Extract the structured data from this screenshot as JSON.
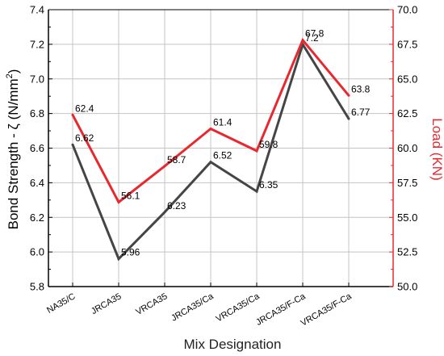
{
  "chart_data": {
    "type": "line",
    "categories": [
      "NA35/C",
      "JRCA35",
      "VRCA35",
      "JRCA35/Ca",
      "VRCA35/Ca",
      "JRCA35/F-Ca",
      "VRCA35/F-Ca"
    ],
    "xlabel": "Mix Designation",
    "ylabel_prefix": "Bond Strength - ζ (N/mm",
    "ylabel_sup": "2",
    "ylabel_suffix": ")",
    "y2label": "Load (KN)",
    "ylim": [
      5.8,
      7.4
    ],
    "yticks": [
      5.8,
      6.0,
      6.2,
      6.4,
      6.6,
      6.8,
      7.0,
      7.2,
      7.4
    ],
    "ytick_labels": [
      "5.8",
      "6.0",
      "6.2",
      "6.4",
      "6.6",
      "6.8",
      "7.0",
      "7.2",
      "7.4"
    ],
    "y2lim": [
      50.0,
      70.0
    ],
    "y2ticks": [
      50.0,
      52.5,
      55.0,
      57.5,
      60.0,
      62.5,
      65.0,
      67.5,
      70.0
    ],
    "y2tick_labels": [
      "50.0",
      "52.5",
      "55.0",
      "57.5",
      "60.0",
      "62.5",
      "65.0",
      "67.5",
      "70.0"
    ],
    "grid": true,
    "series": [
      {
        "axis": "left",
        "color": "#454545",
        "values": [
          6.62,
          5.96,
          6.23,
          6.52,
          6.35,
          7.2,
          6.77
        ],
        "labels": [
          "6.62",
          "5.96",
          "6.23",
          "6.52",
          "6.35",
          "7.2",
          "6.77"
        ]
      },
      {
        "axis": "right",
        "color": "#e8282e",
        "values": [
          62.4,
          56.1,
          58.7,
          61.4,
          59.8,
          67.8,
          63.8
        ],
        "labels": [
          "62.4",
          "56.1",
          "58.7",
          "61.4",
          "59.8",
          "67.8",
          "63.8"
        ]
      }
    ]
  }
}
